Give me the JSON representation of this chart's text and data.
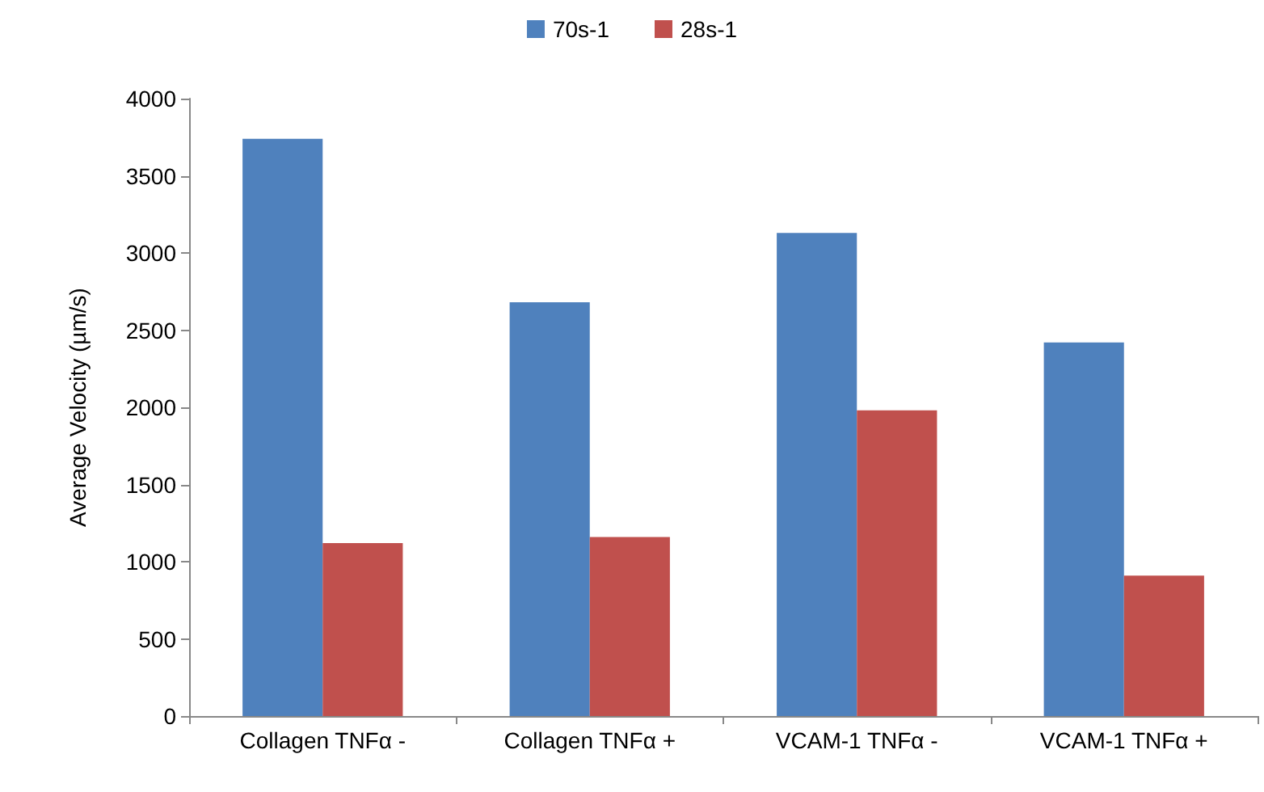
{
  "chart_data": {
    "type": "bar",
    "ylabel": "Average Velocity (µm/s)",
    "categories": [
      "Collagen TNFα -",
      "Collagen TNFα +",
      "VCAM-1 TNFα -",
      "VCAM-1 TNFα +"
    ],
    "series": [
      {
        "name": "70s-1",
        "color": "#4f81bd",
        "values": [
          3740,
          2680,
          3130,
          2420
        ]
      },
      {
        "name": "28s-1",
        "color": "#c0504d",
        "values": [
          1120,
          1160,
          1980,
          910
        ]
      }
    ],
    "ylim": [
      0,
      4000
    ],
    "yticks": [
      0,
      500,
      1000,
      1500,
      2000,
      2500,
      3000,
      3500,
      4000
    ],
    "grid": false,
    "legend": "top"
  }
}
